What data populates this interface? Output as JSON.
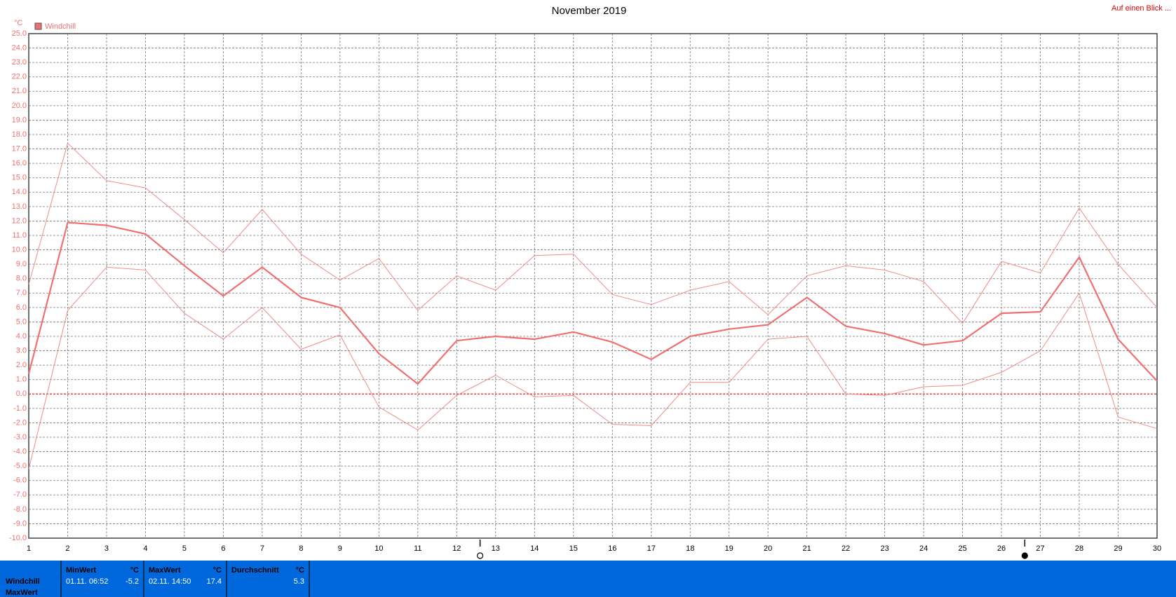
{
  "chart_data": {
    "type": "line",
    "title": "November 2019",
    "unit_label": "°C",
    "top_right_link": "Auf einen Blick ...",
    "x": [
      1,
      2,
      3,
      4,
      5,
      6,
      7,
      8,
      9,
      10,
      11,
      12,
      13,
      14,
      15,
      16,
      17,
      18,
      19,
      20,
      21,
      22,
      23,
      24,
      25,
      26,
      27,
      28,
      29,
      30
    ],
    "xlim": [
      1,
      30
    ],
    "xticks": [
      1,
      2,
      3,
      4,
      5,
      6,
      7,
      8,
      9,
      10,
      11,
      12,
      13,
      14,
      15,
      16,
      17,
      18,
      19,
      20,
      21,
      22,
      23,
      24,
      25,
      26,
      27,
      28,
      29,
      30
    ],
    "ylim": [
      -10,
      25
    ],
    "yticks": [
      {
        "value": -10,
        "label": "-10.0"
      },
      {
        "value": -9,
        "label": "-9.0"
      },
      {
        "value": -8,
        "label": "-8.0"
      },
      {
        "value": -7,
        "label": "-7.0"
      },
      {
        "value": -6,
        "label": "-6.0"
      },
      {
        "value": -5,
        "label": "-5.0"
      },
      {
        "value": -4,
        "label": "-4.0"
      },
      {
        "value": -3,
        "label": "-3.0"
      },
      {
        "value": -2,
        "label": "-2.0"
      },
      {
        "value": -1,
        "label": "-1.0"
      },
      {
        "value": 0,
        "label": "0.0"
      },
      {
        "value": 1,
        "label": "1.0"
      },
      {
        "value": 2,
        "label": "2.0"
      },
      {
        "value": 3,
        "label": "3.0"
      },
      {
        "value": 4,
        "label": "4.0"
      },
      {
        "value": 5,
        "label": "5.0"
      },
      {
        "value": 6,
        "label": "6.0"
      },
      {
        "value": 7,
        "label": "7.0"
      },
      {
        "value": 8,
        "label": "8.0"
      },
      {
        "value": 9,
        "label": "9.0"
      },
      {
        "value": 10,
        "label": "10.0"
      },
      {
        "value": 11,
        "label": "11.0"
      },
      {
        "value": 12,
        "label": "12.0"
      },
      {
        "value": 13,
        "label": "13.0"
      },
      {
        "value": 14,
        "label": "14.0"
      },
      {
        "value": 15,
        "label": "15.0"
      },
      {
        "value": 16,
        "label": "16.0"
      },
      {
        "value": 17,
        "label": "17.0"
      },
      {
        "value": 18,
        "label": "18.0"
      },
      {
        "value": 19,
        "label": "19.0"
      },
      {
        "value": 20,
        "label": "20.0"
      },
      {
        "value": 21,
        "label": "21.0"
      },
      {
        "value": 22,
        "label": "22.0"
      },
      {
        "value": 23,
        "label": "23.0"
      },
      {
        "value": 24,
        "label": "24.0"
      },
      {
        "value": 25,
        "label": "25.0"
      }
    ],
    "grid": true,
    "zero_line": {
      "value": 0,
      "color": "#ff2020"
    },
    "series": [
      {
        "name": "Windchill",
        "color": "#f07070",
        "width": 2.2,
        "values": [
          1.4,
          11.9,
          11.7,
          11.1,
          8.9,
          6.8,
          8.8,
          6.7,
          6.0,
          2.8,
          0.7,
          3.7,
          4.0,
          3.8,
          4.3,
          3.6,
          2.4,
          4.0,
          4.5,
          4.8,
          6.7,
          4.7,
          4.2,
          3.4,
          3.7,
          5.6,
          5.7,
          9.5,
          3.8,
          0.9
        ]
      },
      {
        "color": "#f28a8a",
        "width": 1,
        "values": [
          7.6,
          17.4,
          14.8,
          14.3,
          12.1,
          9.8,
          12.8,
          9.7,
          7.9,
          9.4,
          5.8,
          8.2,
          7.2,
          9.6,
          9.7,
          6.9,
          6.2,
          7.2,
          7.8,
          5.5,
          8.2,
          8.9,
          8.6,
          7.8,
          4.9,
          9.2,
          8.4,
          12.9,
          9.0,
          6.0
        ]
      },
      {
        "color": "#f28a8a",
        "width": 1,
        "values": [
          -5.2,
          5.8,
          8.8,
          8.6,
          5.6,
          3.8,
          6.0,
          3.1,
          4.1,
          -0.9,
          -2.5,
          -0.1,
          1.3,
          -0.2,
          -0.1,
          -2.1,
          -2.2,
          0.8,
          0.8,
          3.8,
          4.0,
          0.0,
          -0.1,
          0.5,
          0.6,
          1.5,
          3.0,
          7.0,
          -1.6,
          -2.4
        ]
      }
    ],
    "markers": [
      {
        "x": 12.6,
        "filled": false
      },
      {
        "x": 26.6,
        "filled": true
      }
    ],
    "summary": {
      "row_labels": [
        "Windchill",
        "MaxWert"
      ],
      "columns": [
        {
          "header": "MinWert",
          "unit": "°C",
          "time": "01.11.  06:52",
          "value": -5.2
        },
        {
          "header": "MaxWert",
          "unit": "°C",
          "time": "02.11.  14:50",
          "value": 17.4
        },
        {
          "header": "Durchschnitt",
          "unit": "°C",
          "value": 5.3
        }
      ]
    }
  }
}
